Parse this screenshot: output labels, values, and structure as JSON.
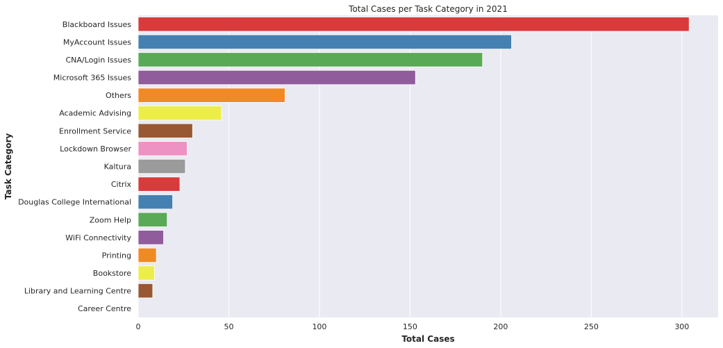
{
  "chart_data": {
    "type": "bar",
    "orientation": "horizontal",
    "title": "Total Cases per Task Category in 2021",
    "xlabel": "Total Cases",
    "ylabel": "Task Category",
    "xlim": [
      0,
      320
    ],
    "xticks": [
      0,
      50,
      100,
      150,
      200,
      250,
      300
    ],
    "grid": true,
    "categories": [
      "Blackboard Issues",
      "MyAccount Issues",
      "CNA/Login Issues",
      "Microsoft 365 Issues",
      "Others",
      "Academic Advising",
      "Enrollment Service",
      "Lockdown Browser",
      "Kaltura",
      "Citrix",
      "Douglas College International",
      "Zoom Help",
      "WiFi Connectivity",
      "Printing",
      "Bookstore",
      "Library and Learning Centre",
      "Career Centre"
    ],
    "values": [
      304,
      206,
      190,
      153,
      81,
      46,
      30,
      27,
      26,
      23,
      19,
      16,
      14,
      10,
      9,
      8,
      0
    ],
    "colors": [
      "#d93a3b",
      "#4580b2",
      "#5aa956",
      "#905c9c",
      "#f08a25",
      "#eded48",
      "#985834",
      "#ed92c2",
      "#9b9b9b",
      "#d93a3b",
      "#4580b2",
      "#5aa956",
      "#905c9c",
      "#f08a25",
      "#eded48",
      "#985834",
      "#ed92c2"
    ],
    "plot_background": "#eaeaf2",
    "grid_color": "#ffffff"
  }
}
